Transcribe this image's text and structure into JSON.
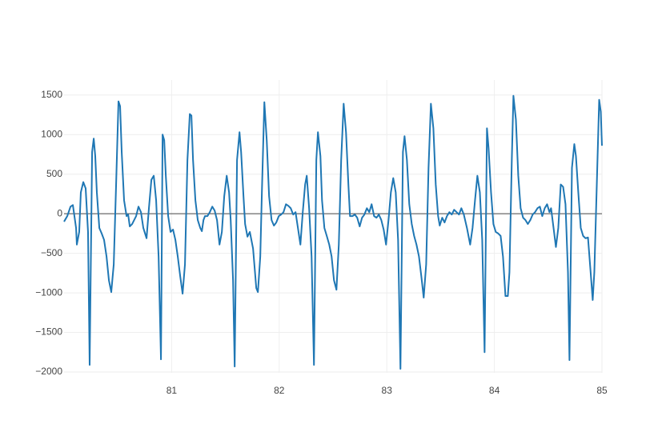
{
  "chart_data": {
    "type": "line",
    "x": [
      80.0,
      80.03,
      80.06,
      80.082,
      80.112,
      80.119,
      80.141,
      80.156,
      80.179,
      80.201,
      80.223,
      80.238,
      80.261,
      80.276,
      80.29,
      80.305,
      80.328,
      80.35,
      80.372,
      80.395,
      80.417,
      80.439,
      80.462,
      80.484,
      80.506,
      80.521,
      80.536,
      80.558,
      80.581,
      80.596,
      80.611,
      80.633,
      80.648,
      80.67,
      80.692,
      80.715,
      80.737,
      80.767,
      80.789,
      80.812,
      80.834,
      80.856,
      80.879,
      80.901,
      80.916,
      80.931,
      80.946,
      80.968,
      80.99,
      81.013,
      81.035,
      81.057,
      81.08,
      81.102,
      81.124,
      81.147,
      81.169,
      81.184,
      81.199,
      81.221,
      81.243,
      81.266,
      81.281,
      81.296,
      81.31,
      81.333,
      81.355,
      81.378,
      81.4,
      81.422,
      81.445,
      81.467,
      81.489,
      81.512,
      81.534,
      81.549,
      81.571,
      81.586,
      81.608,
      81.631,
      81.646,
      81.668,
      81.683,
      81.705,
      81.727,
      81.757,
      81.787,
      81.802,
      81.824,
      81.839,
      81.862,
      81.884,
      81.906,
      81.929,
      81.951,
      81.973,
      81.996,
      82.018,
      82.04,
      82.063,
      82.085,
      82.107,
      82.13,
      82.152,
      82.174,
      82.197,
      82.219,
      82.241,
      82.256,
      82.278,
      82.301,
      82.323,
      82.345,
      82.36,
      82.383,
      82.398,
      82.42,
      82.442,
      82.465,
      82.487,
      82.509,
      82.532,
      82.554,
      82.576,
      82.599,
      82.621,
      82.643,
      82.658,
      82.681,
      82.703,
      82.725,
      82.748,
      82.77,
      82.792,
      82.815,
      82.837,
      82.859,
      82.882,
      82.904,
      82.926,
      82.949,
      82.971,
      82.993,
      83.016,
      83.038,
      83.06,
      83.083,
      83.105,
      83.127,
      83.15,
      83.165,
      83.187,
      83.209,
      83.232,
      83.254,
      83.276,
      83.299,
      83.321,
      83.343,
      83.366,
      83.388,
      83.41,
      83.433,
      83.455,
      83.477,
      83.492,
      83.515,
      83.537,
      83.559,
      83.582,
      83.604,
      83.626,
      83.649,
      83.671,
      83.693,
      83.716,
      83.745,
      83.775,
      83.797,
      83.82,
      83.842,
      83.865,
      83.887,
      83.909,
      83.931,
      83.946,
      83.969,
      83.991,
      84.013,
      84.036,
      84.058,
      84.08,
      84.103,
      84.125,
      84.14,
      84.162,
      84.177,
      84.2,
      84.222,
      84.244,
      84.267,
      84.289,
      84.311,
      84.334,
      84.356,
      84.378,
      84.401,
      84.423,
      84.445,
      84.468,
      84.49,
      84.512,
      84.527,
      84.55,
      84.572,
      84.594,
      84.617,
      84.639,
      84.661,
      84.684,
      84.698,
      84.721,
      84.743,
      84.758,
      84.78,
      84.803,
      84.825,
      84.847,
      84.87,
      84.892,
      84.914,
      84.929,
      84.952,
      84.974,
      84.989,
      85.0
    ],
    "series": [
      {
        "color": "#1f77b4",
        "values": [
          -100,
          -30,
          90,
          110,
          -180,
          -390,
          -230,
          270,
          400,
          320,
          -230,
          -1910,
          780,
          950,
          730,
          270,
          -180,
          -250,
          -330,
          -540,
          -840,
          -990,
          -640,
          370,
          1420,
          1360,
          780,
          170,
          -30,
          -10,
          -160,
          -130,
          -90,
          -30,
          90,
          20,
          -180,
          -310,
          70,
          430,
          480,
          170,
          -540,
          -1840,
          1000,
          930,
          480,
          -30,
          -230,
          -200,
          -330,
          -540,
          -790,
          -1010,
          -640,
          680,
          1260,
          1240,
          680,
          170,
          -80,
          -180,
          -220,
          -80,
          -30,
          -30,
          20,
          90,
          40,
          -80,
          -390,
          -230,
          220,
          480,
          270,
          -80,
          -840,
          -1930,
          680,
          1030,
          780,
          220,
          -130,
          -290,
          -230,
          -440,
          -940,
          -990,
          -540,
          270,
          1410,
          930,
          220,
          -80,
          -150,
          -110,
          -30,
          -10,
          20,
          120,
          100,
          70,
          -10,
          20,
          -180,
          -390,
          20,
          370,
          480,
          70,
          -540,
          -1910,
          680,
          1030,
          730,
          170,
          -180,
          -280,
          -390,
          -540,
          -840,
          -960,
          -390,
          680,
          1390,
          1030,
          370,
          -30,
          -30,
          -10,
          -50,
          -160,
          -50,
          -10,
          70,
          20,
          120,
          -30,
          -50,
          -10,
          -80,
          -200,
          -390,
          -80,
          270,
          450,
          270,
          -330,
          -1960,
          780,
          980,
          680,
          120,
          -130,
          -280,
          -390,
          -540,
          -790,
          -1060,
          -640,
          580,
          1390,
          1080,
          370,
          -30,
          -150,
          -50,
          -110,
          -30,
          20,
          -10,
          50,
          20,
          -10,
          70,
          -10,
          -180,
          -390,
          -180,
          170,
          480,
          270,
          -330,
          -1750,
          1080,
          830,
          270,
          -130,
          -230,
          -250,
          -280,
          -540,
          -1040,
          -1040,
          -740,
          680,
          1490,
          1190,
          480,
          70,
          -50,
          -80,
          -130,
          -80,
          -10,
          20,
          70,
          90,
          -30,
          70,
          120,
          20,
          70,
          -180,
          -420,
          -180,
          370,
          340,
          120,
          -740,
          -1850,
          580,
          880,
          730,
          270,
          -180,
          -280,
          -310,
          -300,
          -690,
          -1090,
          -740,
          370,
          1440,
          1290,
          860
        ]
      }
    ],
    "xlim": [
      80,
      85
    ],
    "xticks": [
      81,
      82,
      83,
      84,
      85
    ],
    "ylim": [
      -2010,
      1690
    ],
    "yticks": [
      {
        "value": -2000,
        "label": "−2000"
      },
      {
        "value": -1500,
        "label": "−1500"
      },
      {
        "value": -1000,
        "label": "−1000"
      },
      {
        "value": -500,
        "label": "−500"
      },
      0,
      500,
      1000,
      1500
    ],
    "grid": true,
    "zeroline": true
  }
}
